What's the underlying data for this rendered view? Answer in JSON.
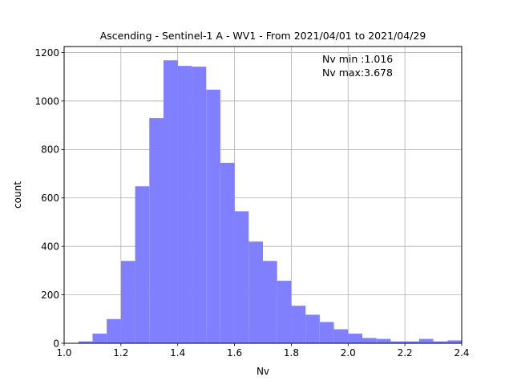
{
  "chart_data": {
    "type": "bar",
    "title": "Ascending - Sentinel-1 A - WV1 - From 2021/04/01 to 2021/04/29",
    "xlabel": "Nv",
    "ylabel": "count",
    "xlim": [
      1.0,
      2.4
    ],
    "ylim": [
      0,
      1225
    ],
    "grid": true,
    "bar_color": "#8080ff",
    "bin_width": 0.05,
    "bins": [
      {
        "start": 1.05,
        "value": 8
      },
      {
        "start": 1.1,
        "value": 40
      },
      {
        "start": 1.15,
        "value": 100
      },
      {
        "start": 1.2,
        "value": 340
      },
      {
        "start": 1.25,
        "value": 648
      },
      {
        "start": 1.3,
        "value": 930
      },
      {
        "start": 1.35,
        "value": 1168
      },
      {
        "start": 1.4,
        "value": 1145
      },
      {
        "start": 1.45,
        "value": 1142
      },
      {
        "start": 1.5,
        "value": 1047
      },
      {
        "start": 1.55,
        "value": 745
      },
      {
        "start": 1.6,
        "value": 545
      },
      {
        "start": 1.65,
        "value": 420
      },
      {
        "start": 1.7,
        "value": 340
      },
      {
        "start": 1.75,
        "value": 258
      },
      {
        "start": 1.8,
        "value": 155
      },
      {
        "start": 1.85,
        "value": 118
      },
      {
        "start": 1.9,
        "value": 88
      },
      {
        "start": 1.95,
        "value": 58
      },
      {
        "start": 2.0,
        "value": 40
      },
      {
        "start": 2.05,
        "value": 22
      },
      {
        "start": 2.1,
        "value": 18
      },
      {
        "start": 2.15,
        "value": 8
      },
      {
        "start": 2.2,
        "value": 8
      },
      {
        "start": 2.25,
        "value": 18
      },
      {
        "start": 2.3,
        "value": 8
      },
      {
        "start": 2.35,
        "value": 12
      }
    ],
    "xticks": [
      "1.0",
      "1.2",
      "1.4",
      "1.6",
      "1.8",
      "2.0",
      "2.2",
      "2.4"
    ],
    "yticks": [
      "0",
      "200",
      "400",
      "600",
      "800",
      "1000",
      "1200"
    ],
    "annotations": [
      "Nv min :1.016",
      "Nv max:3.678"
    ]
  }
}
